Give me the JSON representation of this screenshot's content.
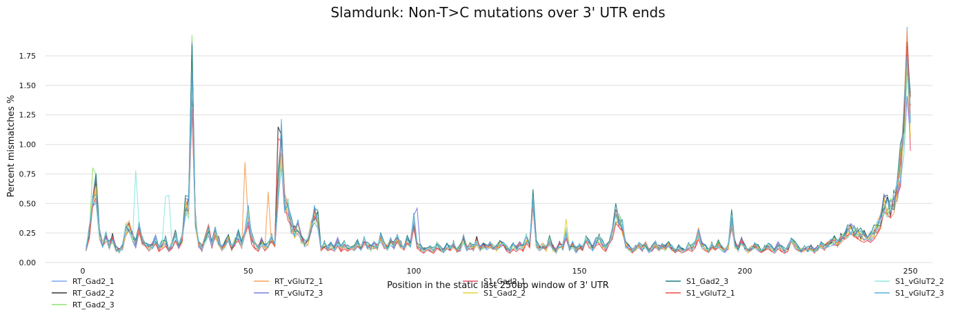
{
  "chart_data": {
    "type": "line",
    "title": "Slamdunk: Non-T>C mutations over 3' UTR ends",
    "xlabel": "Position in the static last 250bp window of 3' UTR",
    "ylabel": "Percent mismatches %",
    "xlim": [
      0,
      250
    ],
    "ylim": [
      0,
      1.85
    ],
    "xticks": [
      0,
      50,
      100,
      150,
      200,
      250
    ],
    "yticks": [
      0.0,
      0.25,
      0.5,
      0.75,
      1.0,
      1.25,
      1.5,
      1.75
    ],
    "grid": "horizontal",
    "legend_placement": "bottom",
    "x": {
      "start": 1,
      "end": 250
    },
    "base_profile": [
      [
        1,
        0.12
      ],
      [
        2,
        0.25
      ],
      [
        3,
        0.55
      ],
      [
        4,
        0.6
      ],
      [
        5,
        0.25
      ],
      [
        6,
        0.15
      ],
      [
        7,
        0.22
      ],
      [
        8,
        0.14
      ],
      [
        9,
        0.2
      ],
      [
        10,
        0.12
      ],
      [
        11,
        0.1
      ],
      [
        12,
        0.12
      ],
      [
        13,
        0.28
      ],
      [
        14,
        0.3
      ],
      [
        15,
        0.22
      ],
      [
        16,
        0.15
      ],
      [
        17,
        0.3
      ],
      [
        18,
        0.18
      ],
      [
        19,
        0.15
      ],
      [
        20,
        0.12
      ],
      [
        21,
        0.14
      ],
      [
        22,
        0.2
      ],
      [
        23,
        0.12
      ],
      [
        24,
        0.15
      ],
      [
        25,
        0.18
      ],
      [
        26,
        0.12
      ],
      [
        27,
        0.15
      ],
      [
        28,
        0.22
      ],
      [
        29,
        0.14
      ],
      [
        30,
        0.2
      ],
      [
        31,
        0.48
      ],
      [
        32,
        0.45
      ],
      [
        33,
        1.6
      ],
      [
        34,
        0.35
      ],
      [
        35,
        0.15
      ],
      [
        36,
        0.12
      ],
      [
        37,
        0.2
      ],
      [
        38,
        0.28
      ],
      [
        39,
        0.15
      ],
      [
        40,
        0.25
      ],
      [
        41,
        0.18
      ],
      [
        42,
        0.12
      ],
      [
        43,
        0.15
      ],
      [
        44,
        0.2
      ],
      [
        45,
        0.12
      ],
      [
        46,
        0.18
      ],
      [
        47,
        0.22
      ],
      [
        48,
        0.15
      ],
      [
        49,
        0.3
      ],
      [
        50,
        0.4
      ],
      [
        51,
        0.2
      ],
      [
        52,
        0.15
      ],
      [
        53,
        0.12
      ],
      [
        54,
        0.18
      ],
      [
        55,
        0.12
      ],
      [
        56,
        0.15
      ],
      [
        57,
        0.2
      ],
      [
        58,
        0.15
      ],
      [
        59,
        0.6
      ],
      [
        60,
        1.0
      ],
      [
        61,
        0.5
      ],
      [
        62,
        0.45
      ],
      [
        63,
        0.3
      ],
      [
        64,
        0.25
      ],
      [
        65,
        0.3
      ],
      [
        66,
        0.2
      ],
      [
        67,
        0.15
      ],
      [
        68,
        0.18
      ],
      [
        69,
        0.3
      ],
      [
        70,
        0.4
      ],
      [
        71,
        0.35
      ],
      [
        72,
        0.12
      ],
      [
        73,
        0.15
      ],
      [
        74,
        0.12
      ],
      [
        75,
        0.14
      ],
      [
        76,
        0.12
      ],
      [
        77,
        0.18
      ],
      [
        78,
        0.12
      ],
      [
        79,
        0.15
      ],
      [
        80,
        0.12
      ],
      [
        81,
        0.14
      ],
      [
        82,
        0.12
      ],
      [
        83,
        0.16
      ],
      [
        84,
        0.12
      ],
      [
        85,
        0.18
      ],
      [
        86,
        0.14
      ],
      [
        87,
        0.12
      ],
      [
        88,
        0.15
      ],
      [
        89,
        0.13
      ],
      [
        90,
        0.2
      ],
      [
        91,
        0.15
      ],
      [
        92,
        0.12
      ],
      [
        93,
        0.18
      ],
      [
        94,
        0.14
      ],
      [
        95,
        0.2
      ],
      [
        96,
        0.15
      ],
      [
        97,
        0.12
      ],
      [
        98,
        0.18
      ],
      [
        99,
        0.15
      ],
      [
        100,
        0.35
      ],
      [
        101,
        0.15
      ],
      [
        102,
        0.12
      ],
      [
        103,
        0.1
      ],
      [
        104,
        0.14
      ],
      [
        105,
        0.12
      ],
      [
        106,
        0.1
      ],
      [
        107,
        0.15
      ],
      [
        108,
        0.12
      ],
      [
        109,
        0.1
      ],
      [
        110,
        0.13
      ],
      [
        111,
        0.12
      ],
      [
        112,
        0.15
      ],
      [
        113,
        0.1
      ],
      [
        114,
        0.12
      ],
      [
        115,
        0.2
      ],
      [
        116,
        0.12
      ],
      [
        117,
        0.14
      ],
      [
        118,
        0.12
      ],
      [
        119,
        0.18
      ],
      [
        120,
        0.12
      ],
      [
        121,
        0.14
      ],
      [
        122,
        0.12
      ],
      [
        123,
        0.15
      ],
      [
        124,
        0.13
      ],
      [
        125,
        0.12
      ],
      [
        126,
        0.15
      ],
      [
        127,
        0.18
      ],
      [
        128,
        0.12
      ],
      [
        129,
        0.1
      ],
      [
        130,
        0.14
      ],
      [
        131,
        0.12
      ],
      [
        132,
        0.15
      ],
      [
        133,
        0.12
      ],
      [
        134,
        0.2
      ],
      [
        135,
        0.15
      ],
      [
        136,
        0.55
      ],
      [
        137,
        0.15
      ],
      [
        138,
        0.12
      ],
      [
        139,
        0.14
      ],
      [
        140,
        0.12
      ],
      [
        141,
        0.18
      ],
      [
        142,
        0.12
      ],
      [
        143,
        0.1
      ],
      [
        144,
        0.15
      ],
      [
        145,
        0.12
      ],
      [
        146,
        0.25
      ],
      [
        147,
        0.12
      ],
      [
        148,
        0.15
      ],
      [
        149,
        0.1
      ],
      [
        150,
        0.14
      ],
      [
        151,
        0.12
      ],
      [
        152,
        0.2
      ],
      [
        153,
        0.15
      ],
      [
        154,
        0.12
      ],
      [
        155,
        0.18
      ],
      [
        156,
        0.2
      ],
      [
        157,
        0.15
      ],
      [
        158,
        0.12
      ],
      [
        159,
        0.2
      ],
      [
        160,
        0.25
      ],
      [
        161,
        0.4
      ],
      [
        162,
        0.35
      ],
      [
        163,
        0.3
      ],
      [
        164,
        0.15
      ],
      [
        165,
        0.12
      ],
      [
        166,
        0.1
      ],
      [
        167,
        0.12
      ],
      [
        168,
        0.14
      ],
      [
        169,
        0.12
      ],
      [
        170,
        0.15
      ],
      [
        171,
        0.1
      ],
      [
        172,
        0.12
      ],
      [
        173,
        0.15
      ],
      [
        174,
        0.12
      ],
      [
        175,
        0.14
      ],
      [
        176,
        0.12
      ],
      [
        177,
        0.15
      ],
      [
        178,
        0.12
      ],
      [
        179,
        0.1
      ],
      [
        180,
        0.12
      ],
      [
        181,
        0.1
      ],
      [
        182,
        0.12
      ],
      [
        183,
        0.14
      ],
      [
        184,
        0.12
      ],
      [
        185,
        0.16
      ],
      [
        186,
        0.25
      ],
      [
        187,
        0.15
      ],
      [
        188,
        0.12
      ],
      [
        189,
        0.1
      ],
      [
        190,
        0.14
      ],
      [
        191,
        0.12
      ],
      [
        192,
        0.15
      ],
      [
        193,
        0.12
      ],
      [
        194,
        0.1
      ],
      [
        195,
        0.14
      ],
      [
        196,
        0.35
      ],
      [
        197,
        0.15
      ],
      [
        198,
        0.12
      ],
      [
        199,
        0.18
      ],
      [
        200,
        0.12
      ],
      [
        201,
        0.1
      ],
      [
        202,
        0.12
      ],
      [
        203,
        0.14
      ],
      [
        204,
        0.12
      ],
      [
        205,
        0.1
      ],
      [
        206,
        0.12
      ],
      [
        207,
        0.14
      ],
      [
        208,
        0.12
      ],
      [
        209,
        0.1
      ],
      [
        210,
        0.15
      ],
      [
        211,
        0.12
      ],
      [
        212,
        0.1
      ],
      [
        213,
        0.12
      ],
      [
        214,
        0.22
      ],
      [
        215,
        0.15
      ],
      [
        216,
        0.12
      ],
      [
        217,
        0.1
      ],
      [
        218,
        0.12
      ],
      [
        219,
        0.11
      ],
      [
        220,
        0.12
      ],
      [
        221,
        0.1
      ],
      [
        222,
        0.12
      ],
      [
        223,
        0.14
      ],
      [
        224,
        0.13
      ],
      [
        225,
        0.15
      ],
      [
        226,
        0.17
      ],
      [
        227,
        0.18
      ],
      [
        228,
        0.16
      ],
      [
        229,
        0.2
      ],
      [
        230,
        0.22
      ],
      [
        231,
        0.25
      ],
      [
        232,
        0.28
      ],
      [
        233,
        0.26
      ],
      [
        234,
        0.25
      ],
      [
        235,
        0.23
      ],
      [
        236,
        0.22
      ],
      [
        237,
        0.24
      ],
      [
        238,
        0.22
      ],
      [
        239,
        0.25
      ],
      [
        240,
        0.3
      ],
      [
        241,
        0.35
      ],
      [
        242,
        0.5
      ],
      [
        243,
        0.45
      ],
      [
        244,
        0.45
      ],
      [
        245,
        0.5
      ],
      [
        246,
        0.6
      ],
      [
        247,
        0.8
      ],
      [
        248,
        1.1
      ],
      [
        249,
        1.7
      ],
      [
        250,
        1.2
      ]
    ],
    "series": [
      {
        "name": "RT_Gad2_1",
        "color": "#7aa6f0",
        "scale": 1.0,
        "overrides": []
      },
      {
        "name": "RT_Gad2_2",
        "color": "#333333",
        "scale": 1.05,
        "overrides": [
          [
            59,
            1.15
          ],
          [
            60,
            1.08
          ]
        ]
      },
      {
        "name": "RT_Gad2_3",
        "color": "#8fe36f",
        "scale": 1.02,
        "overrides": [
          [
            3,
            0.8
          ],
          [
            4,
            0.75
          ]
        ]
      },
      {
        "name": "RT_vGluT2_1",
        "color": "#f5a05a",
        "scale": 1.0,
        "overrides": [
          [
            49,
            0.85
          ],
          [
            56,
            0.6
          ]
        ]
      },
      {
        "name": "RT_vGluT2_3",
        "color": "#7a7fe0",
        "scale": 1.0,
        "overrides": [
          [
            101,
            0.46
          ]
        ]
      },
      {
        "name": "S1_Gad2_1",
        "color": "#e8506a",
        "scale": 0.96,
        "overrides": [
          [
            4,
            0.72
          ]
        ]
      },
      {
        "name": "S1_Gad2_2",
        "color": "#e8d240",
        "scale": 0.97,
        "overrides": [
          [
            146,
            0.37
          ]
        ]
      },
      {
        "name": "S1_Gad2_3",
        "color": "#1f8080",
        "scale": 1.08,
        "overrides": [
          [
            33,
            1.84
          ],
          [
            136,
            0.62
          ],
          [
            196,
            0.45
          ],
          [
            249,
            1.87
          ]
        ]
      },
      {
        "name": "S1_vGluT2_1",
        "color": "#ee4a4a",
        "scale": 0.94,
        "overrides": [
          [
            59,
            1.05
          ]
        ]
      },
      {
        "name": "S1_vGluT2_2",
        "color": "#8ee8dd",
        "scale": 1.0,
        "overrides": [
          [
            16,
            0.78
          ],
          [
            25,
            0.56
          ],
          [
            26,
            0.57
          ]
        ]
      },
      {
        "name": "S1_vGluT2_3",
        "color": "#5aaee0",
        "scale": 1.03,
        "overrides": [
          [
            33,
            1.62
          ],
          [
            249,
            1.75
          ]
        ]
      }
    ]
  }
}
